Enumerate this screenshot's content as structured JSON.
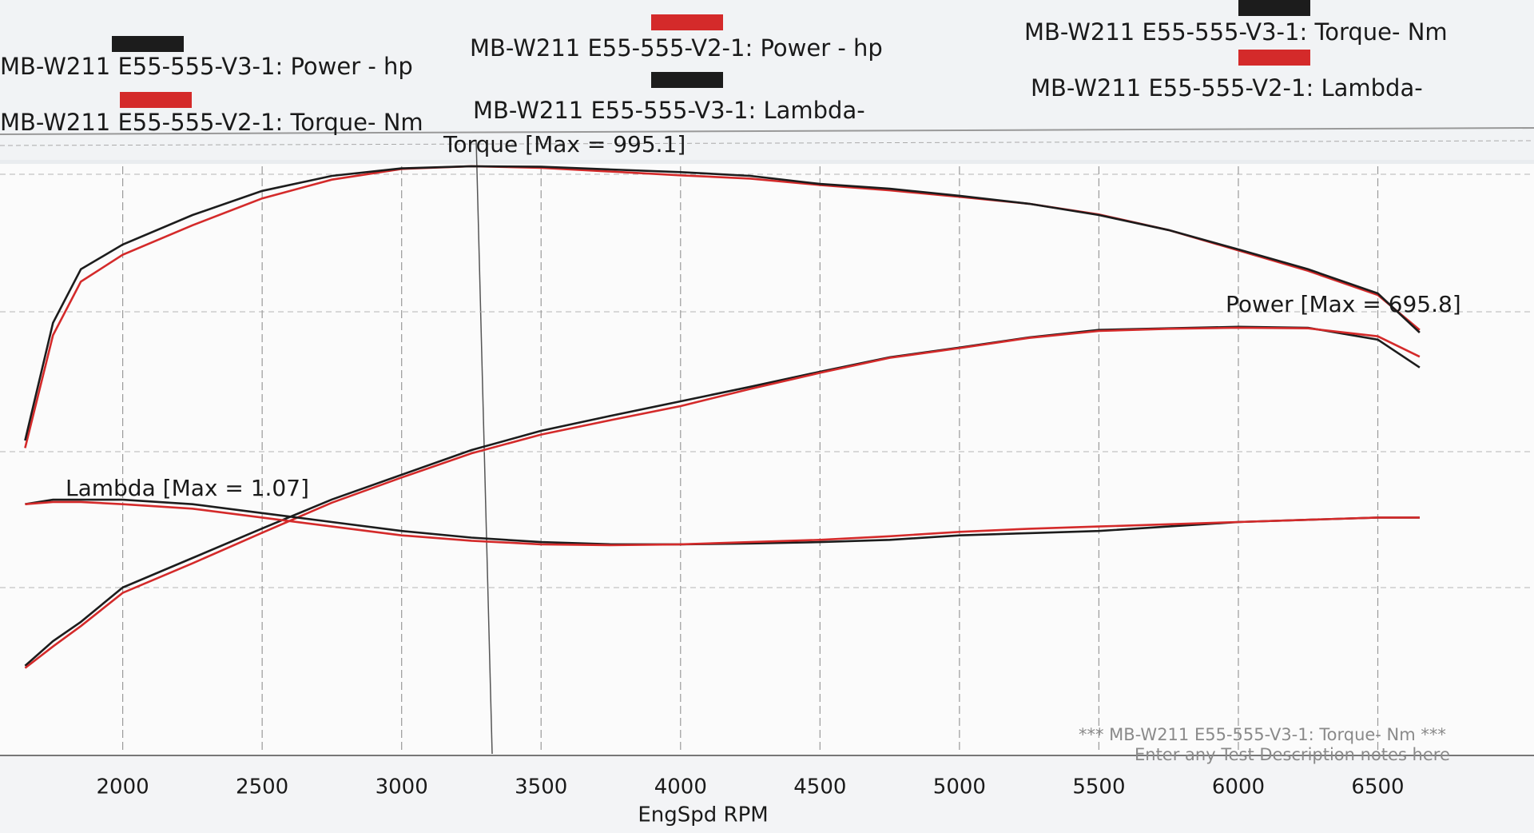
{
  "chart_data": {
    "type": "line",
    "x": [
      1650,
      1750,
      1850,
      2000,
      2250,
      2500,
      2750,
      3000,
      3250,
      3500,
      3750,
      4000,
      4250,
      4500,
      4750,
      5000,
      5250,
      5500,
      5750,
      6000,
      6250,
      6500,
      6650
    ],
    "xlim": [
      1560,
      7060
    ],
    "xticks": [
      2000,
      2500,
      3000,
      3500,
      4000,
      4500,
      5000,
      5500,
      6000,
      6500
    ],
    "xlabel": "EngSpd  RPM",
    "ylim": [
      -100,
      980
    ],
    "y2lim": [
      0.5,
      1.8
    ],
    "grid": true,
    "series": [
      {
        "name": "MB-W211 E55-555-V3-1: Power -  hp",
        "color": "#1c1c1c",
        "values": [
          64,
          110,
          146,
          210,
          265,
          320,
          374,
          420,
          466,
          502,
          530,
          557,
          584,
          612,
          639,
          657,
          676,
          690,
          693,
          695.8,
          694,
          672,
          620
        ]
      },
      {
        "name": "MB-W211 E55-555-V2-1: Torque-  Nm",
        "color": "#d42a2a",
        "values": [
          470,
          680,
          780,
          830,
          885,
          935,
          970,
          990,
          995,
          992,
          985,
          978,
          972,
          960,
          950,
          938,
          925,
          905,
          876,
          838,
          800,
          755,
          690
        ]
      },
      {
        "name": "MB-W211 E55-555-V2-1: Power -  hp",
        "color": "#d42a2a",
        "values": [
          60,
          100,
          138,
          200,
          255,
          312,
          368,
          415,
          460,
          495,
          522,
          548,
          580,
          610,
          638,
          656,
          675,
          688,
          692,
          694,
          693,
          678,
          640
        ]
      },
      {
        "name": "MB-W211 E55-555-V3-1: Lambda-",
        "color": "#1c1c1c",
        "axis": "y2",
        "values": [
          1.06,
          1.07,
          1.07,
          1.07,
          1.06,
          1.04,
          1.02,
          1.0,
          0.985,
          0.975,
          0.97,
          0.97,
          0.972,
          0.975,
          0.98,
          0.99,
          0.995,
          1.0,
          1.01,
          1.02,
          1.025,
          1.03,
          1.03
        ]
      },
      {
        "name": "MB-W211 E55-555-V3-1: Torque-  Nm",
        "color": "#1c1c1c",
        "values": [
          484,
          703,
          803,
          849,
          904,
          949,
          977,
          991,
          995.1,
          994,
          989,
          984,
          977,
          962,
          953,
          940,
          925,
          904,
          876,
          840,
          803,
          758,
          685
        ]
      },
      {
        "name": "MB-W211 E55-555-V2-1: Lambda-",
        "color": "#d42a2a",
        "axis": "y2",
        "values": [
          1.06,
          1.065,
          1.065,
          1.06,
          1.05,
          1.03,
          1.01,
          0.99,
          0.978,
          0.97,
          0.968,
          0.97,
          0.975,
          0.98,
          0.988,
          0.998,
          1.005,
          1.01,
          1.015,
          1.02,
          1.025,
          1.03,
          1.03
        ]
      }
    ],
    "annotations": [
      {
        "text": "Torque [Max = 995.1]",
        "color": "#1a1a1a"
      },
      {
        "text": "Power  [Max = 695.8]",
        "color": "#1a1a1a"
      },
      {
        "text": "Lambda [Max = 1.07]",
        "color": "#d42a2a"
      }
    ],
    "footer": [
      "*** MB-W211 E55-555-V3-1: Torque-  Nm  ***",
      "Enter any Test Description notes here"
    ]
  }
}
